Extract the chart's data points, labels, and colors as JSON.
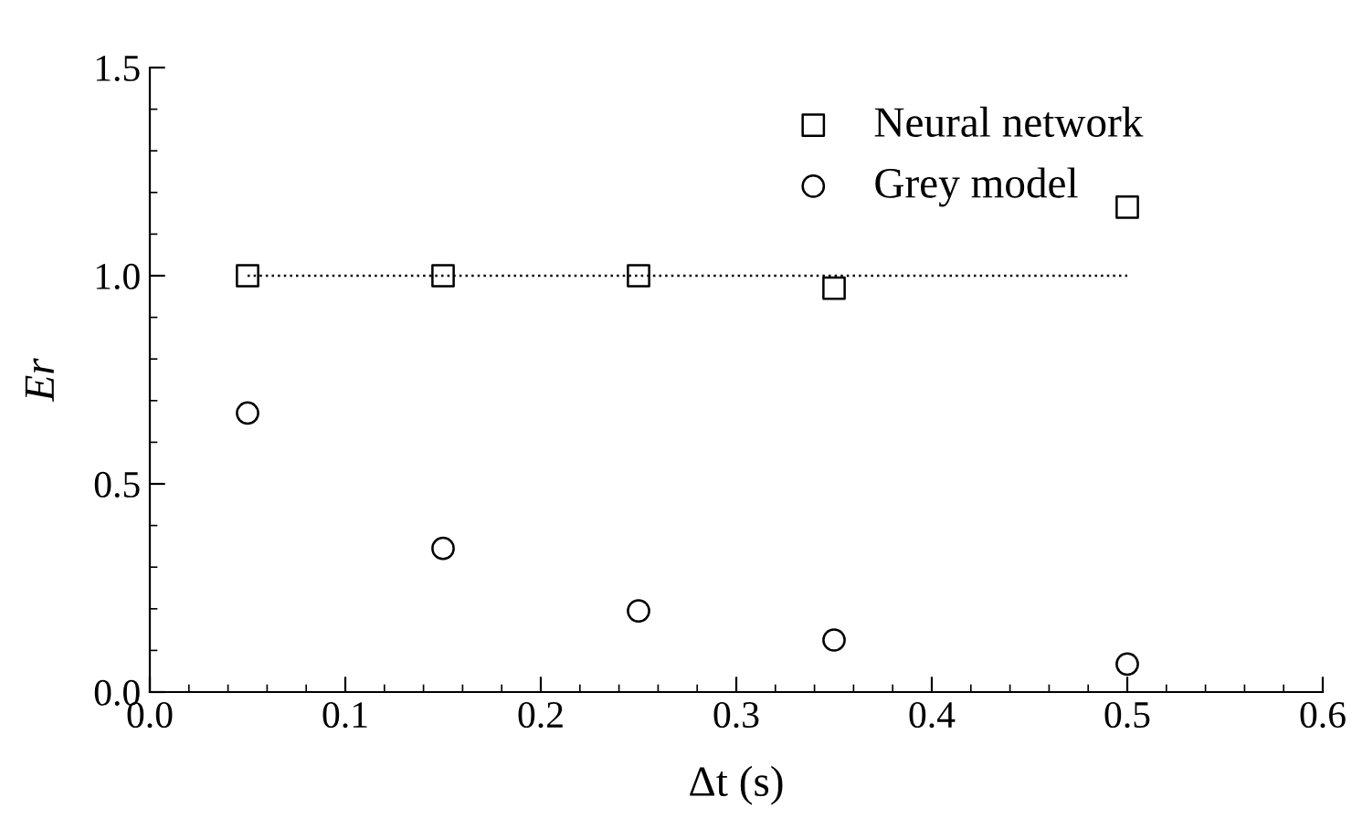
{
  "chart_data": {
    "type": "scatter",
    "xlabel": "Δt (s)",
    "ylabel": "Er",
    "xlim": [
      0,
      0.6
    ],
    "xticks": [
      {
        "value": 0,
        "label": "0.0"
      },
      0.1,
      0.2,
      0.3,
      0.4,
      0.5,
      0.6
    ],
    "ylim": [
      0,
      1.5
    ],
    "yticks": [
      {
        "value": 0,
        "label": "0.0"
      },
      0.5,
      {
        "value": 1,
        "label": "1.0"
      },
      1.5
    ],
    "grid": false,
    "legend": "top right",
    "series": [
      {
        "name": "Neural network",
        "color": "#000000",
        "marker": "square",
        "x": [
          0.05,
          0.15,
          0.25,
          0.35,
          0.5
        ],
        "values": [
          1.0,
          1.0,
          1.0,
          0.97,
          1.165
        ]
      },
      {
        "name": "Grey model",
        "color": "#000000",
        "marker": "circle",
        "x": [
          0.05,
          0.15,
          0.25,
          0.35,
          0.5
        ],
        "values": [
          0.67,
          0.345,
          0.195,
          0.125,
          0.067
        ]
      },
      {
        "type": "line",
        "color": "#000000",
        "line_style": "dotted",
        "marker": "none",
        "x": [
          0.05,
          0.5
        ],
        "values": [
          1,
          1
        ]
      }
    ]
  }
}
